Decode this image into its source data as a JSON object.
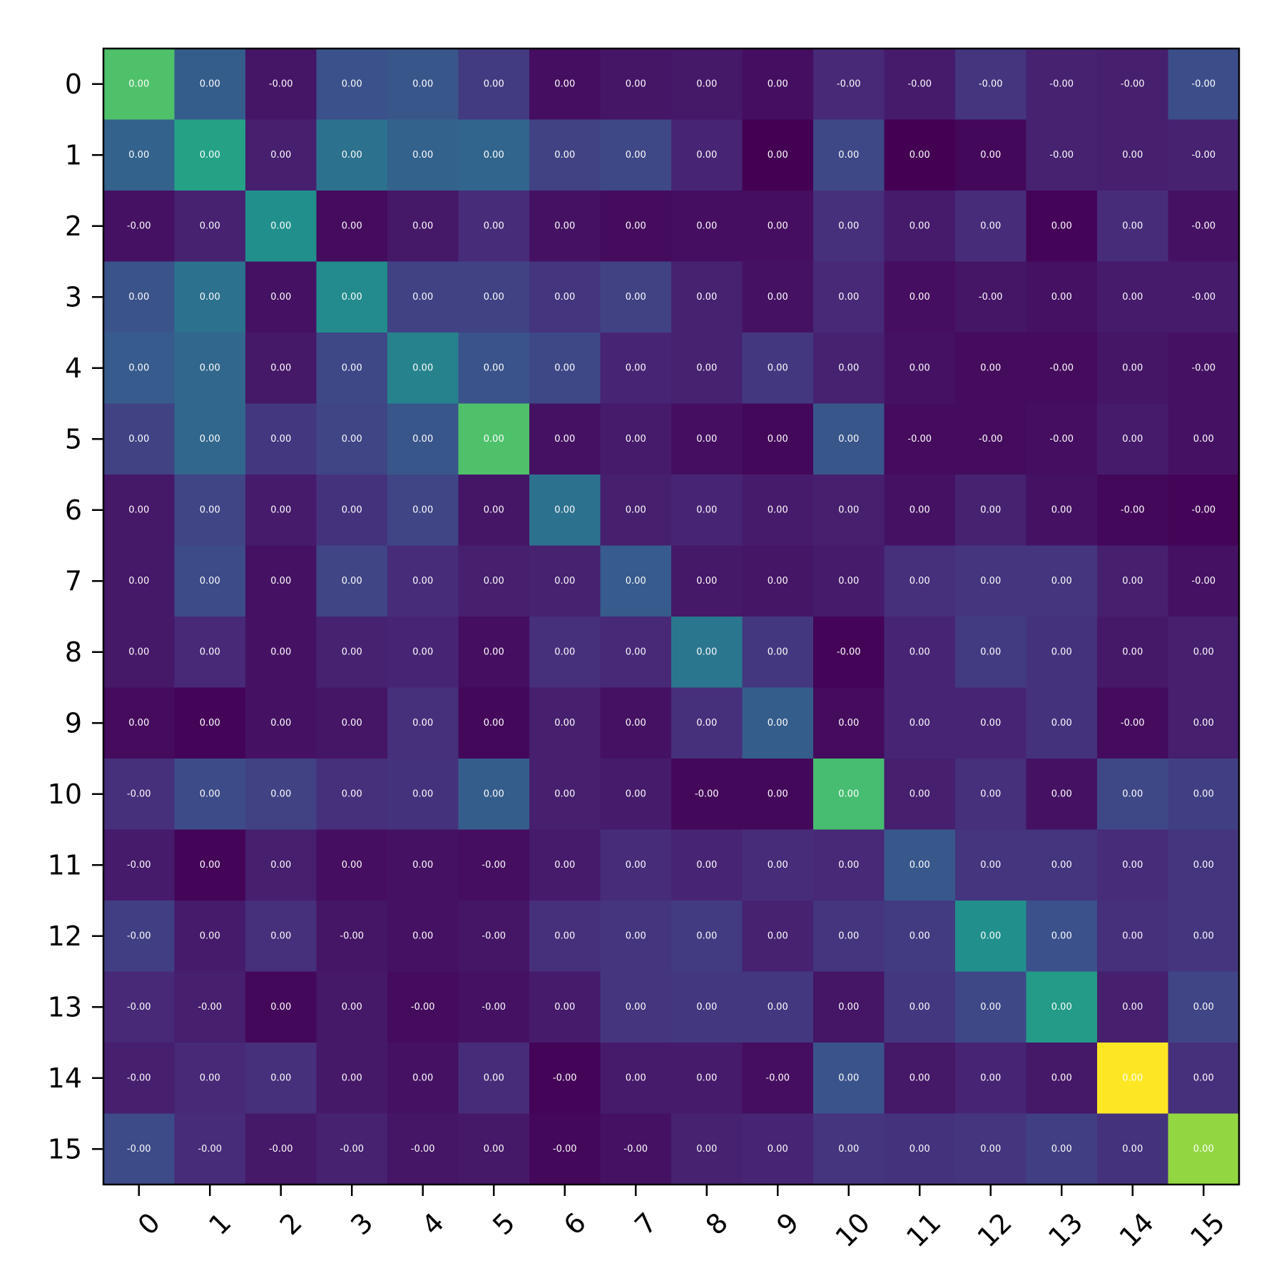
{
  "chart_data": {
    "type": "heatmap",
    "title": "",
    "xlabel": "",
    "ylabel": "",
    "x_ticks": [
      "0",
      "1",
      "2",
      "3",
      "4",
      "5",
      "6",
      "7",
      "8",
      "9",
      "10",
      "11",
      "12",
      "13",
      "14",
      "15"
    ],
    "y_ticks": [
      "0",
      "1",
      "2",
      "3",
      "4",
      "5",
      "6",
      "7",
      "8",
      "9",
      "10",
      "11",
      "12",
      "13",
      "14",
      "15"
    ],
    "colormap": "viridis",
    "grid": false,
    "legend": "none",
    "cell_labels": [
      [
        "0.00",
        "0.00",
        "-0.00",
        "0.00",
        "0.00",
        "0.00",
        "0.00",
        "0.00",
        "0.00",
        "0.00",
        "-0.00",
        "-0.00",
        "-0.00",
        "-0.00",
        "-0.00",
        "-0.00"
      ],
      [
        "0.00",
        "0.00",
        "0.00",
        "0.00",
        "0.00",
        "0.00",
        "0.00",
        "0.00",
        "0.00",
        "0.00",
        "0.00",
        "0.00",
        "0.00",
        "-0.00",
        "0.00",
        "-0.00"
      ],
      [
        "-0.00",
        "0.00",
        "0.00",
        "0.00",
        "0.00",
        "0.00",
        "0.00",
        "0.00",
        "0.00",
        "0.00",
        "0.00",
        "0.00",
        "0.00",
        "0.00",
        "0.00",
        "-0.00"
      ],
      [
        "0.00",
        "0.00",
        "0.00",
        "0.00",
        "0.00",
        "0.00",
        "0.00",
        "0.00",
        "0.00",
        "0.00",
        "0.00",
        "0.00",
        "-0.00",
        "0.00",
        "0.00",
        "-0.00"
      ],
      [
        "0.00",
        "0.00",
        "0.00",
        "0.00",
        "0.00",
        "0.00",
        "0.00",
        "0.00",
        "0.00",
        "0.00",
        "0.00",
        "0.00",
        "0.00",
        "-0.00",
        "0.00",
        "-0.00"
      ],
      [
        "0.00",
        "0.00",
        "0.00",
        "0.00",
        "0.00",
        "0.00",
        "0.00",
        "0.00",
        "0.00",
        "0.00",
        "0.00",
        "-0.00",
        "-0.00",
        "-0.00",
        "0.00",
        "0.00"
      ],
      [
        "0.00",
        "0.00",
        "0.00",
        "0.00",
        "0.00",
        "0.00",
        "0.00",
        "0.00",
        "0.00",
        "0.00",
        "0.00",
        "0.00",
        "0.00",
        "0.00",
        "-0.00",
        "-0.00"
      ],
      [
        "0.00",
        "0.00",
        "0.00",
        "0.00",
        "0.00",
        "0.00",
        "0.00",
        "0.00",
        "0.00",
        "0.00",
        "0.00",
        "0.00",
        "0.00",
        "0.00",
        "0.00",
        "-0.00"
      ],
      [
        "0.00",
        "0.00",
        "0.00",
        "0.00",
        "0.00",
        "0.00",
        "0.00",
        "0.00",
        "0.00",
        "0.00",
        "-0.00",
        "0.00",
        "0.00",
        "0.00",
        "0.00",
        "0.00"
      ],
      [
        "0.00",
        "0.00",
        "0.00",
        "0.00",
        "0.00",
        "0.00",
        "0.00",
        "0.00",
        "0.00",
        "0.00",
        "0.00",
        "0.00",
        "0.00",
        "0.00",
        "-0.00",
        "0.00"
      ],
      [
        "-0.00",
        "0.00",
        "0.00",
        "0.00",
        "0.00",
        "0.00",
        "0.00",
        "0.00",
        "-0.00",
        "0.00",
        "0.00",
        "0.00",
        "0.00",
        "0.00",
        "0.00",
        "0.00"
      ],
      [
        "-0.00",
        "0.00",
        "0.00",
        "0.00",
        "0.00",
        "-0.00",
        "0.00",
        "0.00",
        "0.00",
        "0.00",
        "0.00",
        "0.00",
        "0.00",
        "0.00",
        "0.00",
        "0.00"
      ],
      [
        "-0.00",
        "0.00",
        "0.00",
        "-0.00",
        "0.00",
        "-0.00",
        "0.00",
        "0.00",
        "0.00",
        "0.00",
        "0.00",
        "0.00",
        "0.00",
        "0.00",
        "0.00",
        "0.00"
      ],
      [
        "-0.00",
        "-0.00",
        "0.00",
        "0.00",
        "-0.00",
        "-0.00",
        "0.00",
        "0.00",
        "0.00",
        "0.00",
        "0.00",
        "0.00",
        "0.00",
        "0.00",
        "0.00",
        "0.00"
      ],
      [
        "-0.00",
        "0.00",
        "0.00",
        "0.00",
        "0.00",
        "0.00",
        "-0.00",
        "0.00",
        "0.00",
        "-0.00",
        "0.00",
        "0.00",
        "0.00",
        "0.00",
        "0.00",
        "0.00"
      ],
      [
        "-0.00",
        "-0.00",
        "-0.00",
        "-0.00",
        "-0.00",
        "0.00",
        "-0.00",
        "-0.00",
        "0.00",
        "0.00",
        "0.00",
        "0.00",
        "0.00",
        "0.00",
        "0.00",
        "0.00"
      ]
    ],
    "color_intensity": [
      [
        0.72,
        0.3,
        0.06,
        0.25,
        0.27,
        0.18,
        0.04,
        0.06,
        0.07,
        0.04,
        0.12,
        0.08,
        0.16,
        0.1,
        0.09,
        0.24
      ],
      [
        0.32,
        0.58,
        0.09,
        0.38,
        0.32,
        0.33,
        0.2,
        0.22,
        0.11,
        0.0,
        0.22,
        0.0,
        0.02,
        0.1,
        0.09,
        0.1
      ],
      [
        0.05,
        0.1,
        0.5,
        0.03,
        0.07,
        0.13,
        0.05,
        0.03,
        0.04,
        0.04,
        0.14,
        0.08,
        0.13,
        0.01,
        0.13,
        0.05
      ],
      [
        0.26,
        0.38,
        0.05,
        0.48,
        0.2,
        0.2,
        0.16,
        0.2,
        0.1,
        0.05,
        0.12,
        0.04,
        0.06,
        0.05,
        0.08,
        0.08
      ],
      [
        0.29,
        0.34,
        0.07,
        0.22,
        0.45,
        0.26,
        0.22,
        0.11,
        0.1,
        0.17,
        0.1,
        0.05,
        0.03,
        0.03,
        0.06,
        0.05
      ],
      [
        0.2,
        0.34,
        0.17,
        0.21,
        0.27,
        0.72,
        0.05,
        0.08,
        0.04,
        0.02,
        0.27,
        0.03,
        0.03,
        0.04,
        0.08,
        0.05
      ],
      [
        0.07,
        0.21,
        0.08,
        0.15,
        0.21,
        0.06,
        0.38,
        0.09,
        0.11,
        0.08,
        0.09,
        0.05,
        0.1,
        0.05,
        0.02,
        0.01
      ],
      [
        0.07,
        0.23,
        0.05,
        0.21,
        0.13,
        0.09,
        0.1,
        0.29,
        0.07,
        0.06,
        0.08,
        0.14,
        0.16,
        0.16,
        0.09,
        0.05
      ],
      [
        0.07,
        0.12,
        0.05,
        0.1,
        0.11,
        0.04,
        0.14,
        0.12,
        0.4,
        0.17,
        0.01,
        0.11,
        0.18,
        0.15,
        0.07,
        0.09
      ],
      [
        0.03,
        0.01,
        0.05,
        0.06,
        0.14,
        0.02,
        0.09,
        0.05,
        0.14,
        0.3,
        0.03,
        0.11,
        0.11,
        0.15,
        0.03,
        0.09
      ],
      [
        0.14,
        0.23,
        0.2,
        0.14,
        0.15,
        0.3,
        0.09,
        0.08,
        0.02,
        0.02,
        0.7,
        0.09,
        0.14,
        0.05,
        0.22,
        0.19
      ],
      [
        0.08,
        0.01,
        0.09,
        0.04,
        0.05,
        0.04,
        0.08,
        0.13,
        0.11,
        0.13,
        0.12,
        0.28,
        0.16,
        0.16,
        0.13,
        0.16
      ],
      [
        0.19,
        0.08,
        0.14,
        0.06,
        0.05,
        0.06,
        0.14,
        0.16,
        0.18,
        0.1,
        0.16,
        0.18,
        0.5,
        0.25,
        0.14,
        0.16
      ],
      [
        0.12,
        0.09,
        0.02,
        0.07,
        0.03,
        0.05,
        0.08,
        0.16,
        0.17,
        0.17,
        0.06,
        0.17,
        0.22,
        0.55,
        0.09,
        0.21
      ],
      [
        0.09,
        0.12,
        0.14,
        0.07,
        0.05,
        0.13,
        0.01,
        0.08,
        0.08,
        0.04,
        0.26,
        0.07,
        0.11,
        0.07,
        1.0,
        0.14
      ],
      [
        0.23,
        0.13,
        0.07,
        0.1,
        0.06,
        0.07,
        0.02,
        0.05,
        0.1,
        0.11,
        0.16,
        0.15,
        0.16,
        0.19,
        0.15,
        0.84
      ]
    ]
  }
}
